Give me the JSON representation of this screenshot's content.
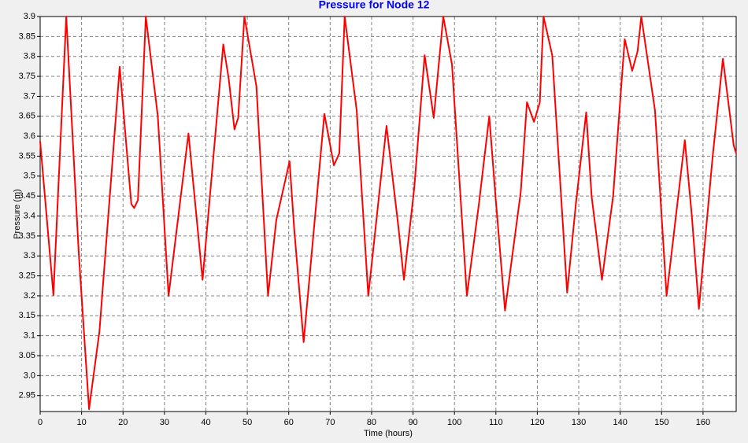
{
  "chart_data": {
    "type": "line",
    "title": "Pressure for Node 12",
    "x_label": "Time (hours)",
    "y_label": "Pressure (m)",
    "x": [
      0,
      3.2,
      6.3,
      9.3,
      11.8,
      14.3,
      19.2,
      22,
      22.7,
      23.6,
      25.5,
      28.4,
      31,
      35.8,
      39.2,
      44.2,
      45.5,
      46.9,
      47.8,
      49.3,
      52.2,
      55,
      57,
      60.2,
      61.3,
      63.6,
      66.1,
      68.6,
      70.9,
      72.2,
      73.5,
      76.4,
      79.2,
      83.6,
      86.5,
      87.8,
      90.3,
      92.8,
      95,
      97.3,
      99.4,
      103,
      105.9,
      108.4,
      109.9,
      112.2,
      116,
      117.5,
      119.2,
      120.6,
      121.5,
      123.6,
      127.2,
      129.3,
      131.8,
      133.1,
      135.6,
      138.3,
      141.1,
      142.9,
      144.2,
      145.1,
      148.4,
      151.2,
      155.6,
      157.3,
      159,
      162.3,
      164.8,
      167.4,
      168
    ],
    "values": [
      3.587,
      3.202,
      3.9,
      3.31,
      2.916,
      3.11,
      3.774,
      3.43,
      3.42,
      3.44,
      3.9,
      3.65,
      3.2,
      3.607,
      3.24,
      3.83,
      3.745,
      3.617,
      3.646,
      3.9,
      3.725,
      3.2,
      3.39,
      3.537,
      3.37,
      3.084,
      3.37,
      3.656,
      3.527,
      3.557,
      3.9,
      3.665,
      3.2,
      3.626,
      3.37,
      3.24,
      3.47,
      3.803,
      3.646,
      3.9,
      3.78,
      3.2,
      3.43,
      3.65,
      3.45,
      3.163,
      3.46,
      3.685,
      3.636,
      3.685,
      3.9,
      3.803,
      3.208,
      3.43,
      3.66,
      3.45,
      3.24,
      3.45,
      3.843,
      3.764,
      3.813,
      3.9,
      3.665,
      3.2,
      3.59,
      3.4,
      3.167,
      3.547,
      3.794,
      3.577,
      3.557
    ],
    "color": "#ff0000",
    "xlim": [
      0,
      168
    ],
    "xticks": [
      0,
      10,
      20,
      30,
      40,
      50,
      60,
      70,
      80,
      90,
      100,
      110,
      120,
      130,
      140,
      150,
      160
    ],
    "ylim": [
      2.91,
      3.9
    ],
    "yticks": [
      2.95,
      {
        "value": 3,
        "label": "3.0"
      },
      3.05,
      3.1,
      3.15,
      3.2,
      3.25,
      3.3,
      3.35,
      3.4,
      3.45,
      3.5,
      3.55,
      3.6,
      3.65,
      3.7,
      3.75,
      3.8,
      3.85,
      3.9
    ],
    "grid": true
  }
}
